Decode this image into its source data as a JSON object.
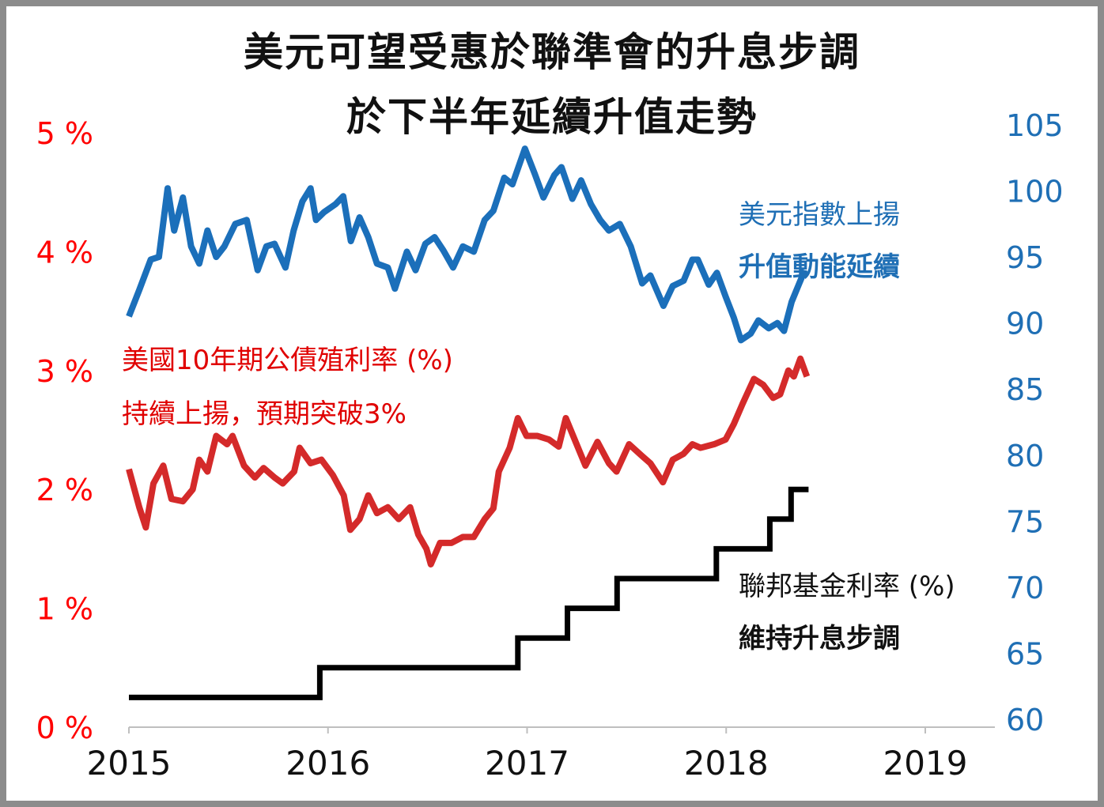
{
  "chart_data": {
    "type": "line",
    "title": [
      "美元可望受惠於聯準會的升息步調",
      "於下半年延續升值走勢"
    ],
    "x_tick_labels": [
      "2015",
      "2016",
      "2017",
      "2018",
      "2019"
    ],
    "xlim": [
      "2015-01-01",
      "2019-01-01"
    ],
    "left_axis": {
      "ticks": [
        "0 %",
        "1 %",
        "2 %",
        "3 %",
        "4 %",
        "5 %"
      ],
      "ylim": [
        0,
        5
      ],
      "color": "#ff0000"
    },
    "right_axis": {
      "ticks": [
        "60",
        "65",
        "70",
        "75",
        "80",
        "85",
        "90",
        "95",
        "100",
        "105"
      ],
      "ylim": [
        60,
        105
      ],
      "color": "#1f6fb5"
    },
    "grid": false,
    "series": [
      {
        "axis": "right",
        "color": "#1b6fba",
        "annotation": [
          "美元指數上揚",
          "升值動能延續"
        ],
        "points": [
          [
            "2015-01-01",
            90.5
          ],
          [
            "2015-01-20",
            92.5
          ],
          [
            "2015-02-10",
            94.8
          ],
          [
            "2015-02-25",
            95
          ],
          [
            "2015-03-13",
            100.2
          ],
          [
            "2015-03-25",
            97
          ],
          [
            "2015-04-10",
            99.5
          ],
          [
            "2015-04-25",
            95.8
          ],
          [
            "2015-05-10",
            94.5
          ],
          [
            "2015-05-25",
            97
          ],
          [
            "2015-06-10",
            95
          ],
          [
            "2015-06-25",
            95.8
          ],
          [
            "2015-07-15",
            97.5
          ],
          [
            "2015-08-05",
            97.8
          ],
          [
            "2015-08-25",
            94
          ],
          [
            "2015-09-10",
            95.8
          ],
          [
            "2015-09-25",
            96
          ],
          [
            "2015-10-15",
            94.2
          ],
          [
            "2015-10-30",
            97
          ],
          [
            "2015-11-15",
            99.2
          ],
          [
            "2015-11-30",
            100.2
          ],
          [
            "2015-12-10",
            97.8
          ],
          [
            "2015-12-25",
            98.4
          ],
          [
            "2016-01-15",
            99
          ],
          [
            "2016-01-29",
            99.6
          ],
          [
            "2016-02-12",
            96.2
          ],
          [
            "2016-02-28",
            98
          ],
          [
            "2016-03-15",
            96.5
          ],
          [
            "2016-03-31",
            94.5
          ],
          [
            "2016-04-20",
            94.2
          ],
          [
            "2016-05-03",
            92.6
          ],
          [
            "2016-05-25",
            95.4
          ],
          [
            "2016-06-10",
            94
          ],
          [
            "2016-06-28",
            96
          ],
          [
            "2016-07-15",
            96.5
          ],
          [
            "2016-07-31",
            95.5
          ],
          [
            "2016-08-18",
            94.2
          ],
          [
            "2016-09-05",
            95.8
          ],
          [
            "2016-09-25",
            95.4
          ],
          [
            "2016-10-15",
            97.8
          ],
          [
            "2016-10-31",
            98.5
          ],
          [
            "2016-11-20",
            101
          ],
          [
            "2016-12-05",
            100.5
          ],
          [
            "2016-12-28",
            103.2
          ],
          [
            "2017-01-15",
            101.3
          ],
          [
            "2017-01-31",
            99.5
          ],
          [
            "2017-02-20",
            101.2
          ],
          [
            "2017-03-05",
            101.8
          ],
          [
            "2017-03-25",
            99.4
          ],
          [
            "2017-04-10",
            100.8
          ],
          [
            "2017-04-28",
            99
          ],
          [
            "2017-05-15",
            97.8
          ],
          [
            "2017-05-31",
            97
          ],
          [
            "2017-06-20",
            97.5
          ],
          [
            "2017-07-10",
            95.8
          ],
          [
            "2017-07-31",
            93
          ],
          [
            "2017-08-15",
            93.6
          ],
          [
            "2017-09-08",
            91.3
          ],
          [
            "2017-09-25",
            92.8
          ],
          [
            "2017-10-15",
            93.2
          ],
          [
            "2017-10-31",
            94.8
          ],
          [
            "2017-11-10",
            94.8
          ],
          [
            "2017-11-30",
            92.9
          ],
          [
            "2017-12-15",
            93.8
          ],
          [
            "2017-12-31",
            92
          ],
          [
            "2018-01-15",
            90.4
          ],
          [
            "2018-01-28",
            88.7
          ],
          [
            "2018-02-15",
            89.2
          ],
          [
            "2018-03-01",
            90.2
          ],
          [
            "2018-03-20",
            89.6
          ],
          [
            "2018-04-05",
            90
          ],
          [
            "2018-04-17",
            89.4
          ],
          [
            "2018-05-01",
            91.6
          ],
          [
            "2018-05-15",
            93
          ],
          [
            "2018-05-25",
            94
          ]
        ]
      },
      {
        "axis": "left",
        "color": "#d42a2a",
        "annotation": [
          "美國10年期公債殖利率 (%)",
          "持續上揚，預期突破3%"
        ],
        "points": [
          [
            "2015-01-01",
            2.17
          ],
          [
            "2015-01-20",
            1.85
          ],
          [
            "2015-02-01",
            1.68
          ],
          [
            "2015-02-15",
            2.05
          ],
          [
            "2015-03-05",
            2.2
          ],
          [
            "2015-03-20",
            1.92
          ],
          [
            "2015-04-10",
            1.9
          ],
          [
            "2015-04-28",
            2.0
          ],
          [
            "2015-05-10",
            2.25
          ],
          [
            "2015-05-25",
            2.15
          ],
          [
            "2015-06-10",
            2.45
          ],
          [
            "2015-06-30",
            2.38
          ],
          [
            "2015-07-10",
            2.45
          ],
          [
            "2015-07-31",
            2.2
          ],
          [
            "2015-08-20",
            2.1
          ],
          [
            "2015-09-05",
            2.18
          ],
          [
            "2015-09-25",
            2.1
          ],
          [
            "2015-10-10",
            2.05
          ],
          [
            "2015-10-31",
            2.15
          ],
          [
            "2015-11-10",
            2.35
          ],
          [
            "2015-11-30",
            2.22
          ],
          [
            "2015-12-20",
            2.25
          ],
          [
            "2016-01-10",
            2.12
          ],
          [
            "2016-01-30",
            1.95
          ],
          [
            "2016-02-11",
            1.66
          ],
          [
            "2016-02-28",
            1.75
          ],
          [
            "2016-03-15",
            1.95
          ],
          [
            "2016-03-31",
            1.8
          ],
          [
            "2016-04-20",
            1.85
          ],
          [
            "2016-05-10",
            1.75
          ],
          [
            "2016-05-31",
            1.85
          ],
          [
            "2016-06-15",
            1.62
          ],
          [
            "2016-06-30",
            1.5
          ],
          [
            "2016-07-08",
            1.37
          ],
          [
            "2016-07-25",
            1.55
          ],
          [
            "2016-08-15",
            1.55
          ],
          [
            "2016-09-05",
            1.6
          ],
          [
            "2016-09-25",
            1.6
          ],
          [
            "2016-10-15",
            1.75
          ],
          [
            "2016-10-31",
            1.84
          ],
          [
            "2016-11-10",
            2.15
          ],
          [
            "2016-11-30",
            2.35
          ],
          [
            "2016-12-15",
            2.6
          ],
          [
            "2016-12-31",
            2.45
          ],
          [
            "2017-01-20",
            2.45
          ],
          [
            "2017-02-10",
            2.42
          ],
          [
            "2017-02-28",
            2.36
          ],
          [
            "2017-03-13",
            2.6
          ],
          [
            "2017-03-31",
            2.4
          ],
          [
            "2017-04-18",
            2.2
          ],
          [
            "2017-05-10",
            2.4
          ],
          [
            "2017-05-31",
            2.22
          ],
          [
            "2017-06-14",
            2.15
          ],
          [
            "2017-07-07",
            2.38
          ],
          [
            "2017-07-31",
            2.28
          ],
          [
            "2017-08-15",
            2.22
          ],
          [
            "2017-09-07",
            2.06
          ],
          [
            "2017-09-25",
            2.25
          ],
          [
            "2017-10-15",
            2.3
          ],
          [
            "2017-10-31",
            2.38
          ],
          [
            "2017-11-15",
            2.35
          ],
          [
            "2017-12-10",
            2.38
          ],
          [
            "2017-12-31",
            2.42
          ],
          [
            "2018-01-15",
            2.55
          ],
          [
            "2018-01-31",
            2.72
          ],
          [
            "2018-02-21",
            2.93
          ],
          [
            "2018-03-10",
            2.88
          ],
          [
            "2018-03-28",
            2.77
          ],
          [
            "2018-04-10",
            2.8
          ],
          [
            "2018-04-25",
            3.0
          ],
          [
            "2018-05-05",
            2.95
          ],
          [
            "2018-05-17",
            3.1
          ],
          [
            "2018-05-29",
            2.95
          ]
        ]
      },
      {
        "axis": "left",
        "color": "#000000",
        "step": true,
        "annotation": [
          "聯邦基金利率 (%)",
          "維持升息步調"
        ],
        "points": [
          [
            "2015-01-01",
            0.25
          ],
          [
            "2015-12-17",
            0.5
          ],
          [
            "2016-12-15",
            0.75
          ],
          [
            "2017-03-16",
            1.0
          ],
          [
            "2017-06-15",
            1.25
          ],
          [
            "2017-12-14",
            1.5
          ],
          [
            "2018-03-22",
            1.75
          ],
          [
            "2018-04-30",
            2.0
          ],
          [
            "2018-06-01",
            2.0
          ]
        ]
      }
    ]
  }
}
